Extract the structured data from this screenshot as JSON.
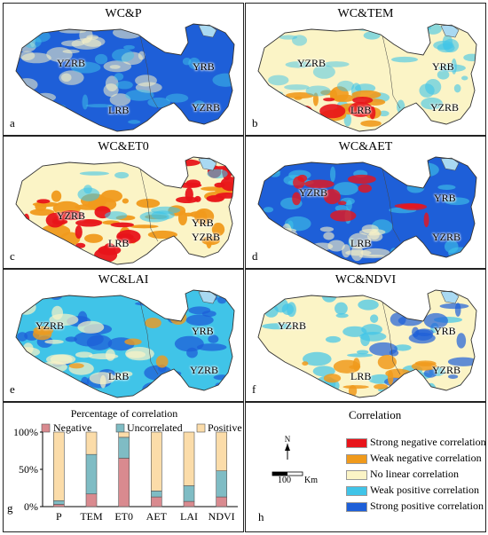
{
  "colors": {
    "strong_negative": "#e8141a",
    "weak_negative": "#f09a1c",
    "no_linear": "#fbf4c6",
    "weak_positive": "#40c4e8",
    "strong_positive": "#1e5fd8",
    "lake": "#a9d9f2",
    "bar_negative": "#d98a8f",
    "bar_uncorrelated": "#7fbcc4",
    "bar_positive": "#fbdca9"
  },
  "maps": [
    {
      "id": "a",
      "title": "WC&P",
      "label": "a",
      "labels": [
        "YZRB",
        "YRB",
        "LRB",
        "YZRB"
      ],
      "scheme": "p"
    },
    {
      "id": "b",
      "title": "WC&TEM",
      "label": "b",
      "labels": [
        "YZRB",
        "YRB",
        "LRB",
        "YZRB"
      ],
      "scheme": "tem"
    },
    {
      "id": "c",
      "title": "WC&ET0",
      "label": "c",
      "labels": [
        "YZRB",
        "YRB",
        "LRB",
        "YZRB"
      ],
      "scheme": "et0"
    },
    {
      "id": "d",
      "title": "WC&AET",
      "label": "d",
      "labels": [
        "YZRB",
        "YRB",
        "LRB",
        "YZRB"
      ],
      "scheme": "aet"
    },
    {
      "id": "e",
      "title": "WC&LAI",
      "label": "e",
      "labels": [
        "YZRB",
        "YRB",
        "LRB",
        "YZRB"
      ],
      "scheme": "lai"
    },
    {
      "id": "f",
      "title": "WC&NDVI",
      "label": "f",
      "labels": [
        "YZRB",
        "YRB",
        "LRB",
        "YZRB"
      ],
      "scheme": "ndvi"
    }
  ],
  "panel_g": {
    "label": "g",
    "title": "Percentage of correlation",
    "legend": [
      "Negative",
      "Uncorrelated",
      "Positive"
    ]
  },
  "chart_data": {
    "type": "bar",
    "stacked": true,
    "title": "Percentage of correlation",
    "categories": [
      "P",
      "TEM",
      "ET0",
      "AET",
      "LAI",
      "NDVI"
    ],
    "series": [
      {
        "name": "Negative",
        "values": [
          3,
          17,
          65,
          13,
          7,
          13
        ]
      },
      {
        "name": "Uncorrelated",
        "values": [
          5,
          53,
          28,
          8,
          21,
          35
        ]
      },
      {
        "name": "Positive",
        "values": [
          92,
          30,
          7,
          79,
          72,
          52
        ]
      }
    ],
    "yticks": [
      "0%",
      "50%",
      "100%"
    ],
    "ylim": [
      0,
      100
    ]
  },
  "panel_h": {
    "label": "h",
    "legend_title": "Correlation",
    "items": [
      {
        "label": "Strong negative correlation",
        "color": "#e8141a"
      },
      {
        "label": "Weak negative correlation",
        "color": "#f09a1c"
      },
      {
        "label": "No linear correlation",
        "color": "#fbf4c6"
      },
      {
        "label": "Weak positive correlation",
        "color": "#40c4e8"
      },
      {
        "label": "Strong positive correlation",
        "color": "#1e5fd8"
      }
    ],
    "north": "N",
    "scale_value": "100",
    "scale_unit": "Km"
  }
}
